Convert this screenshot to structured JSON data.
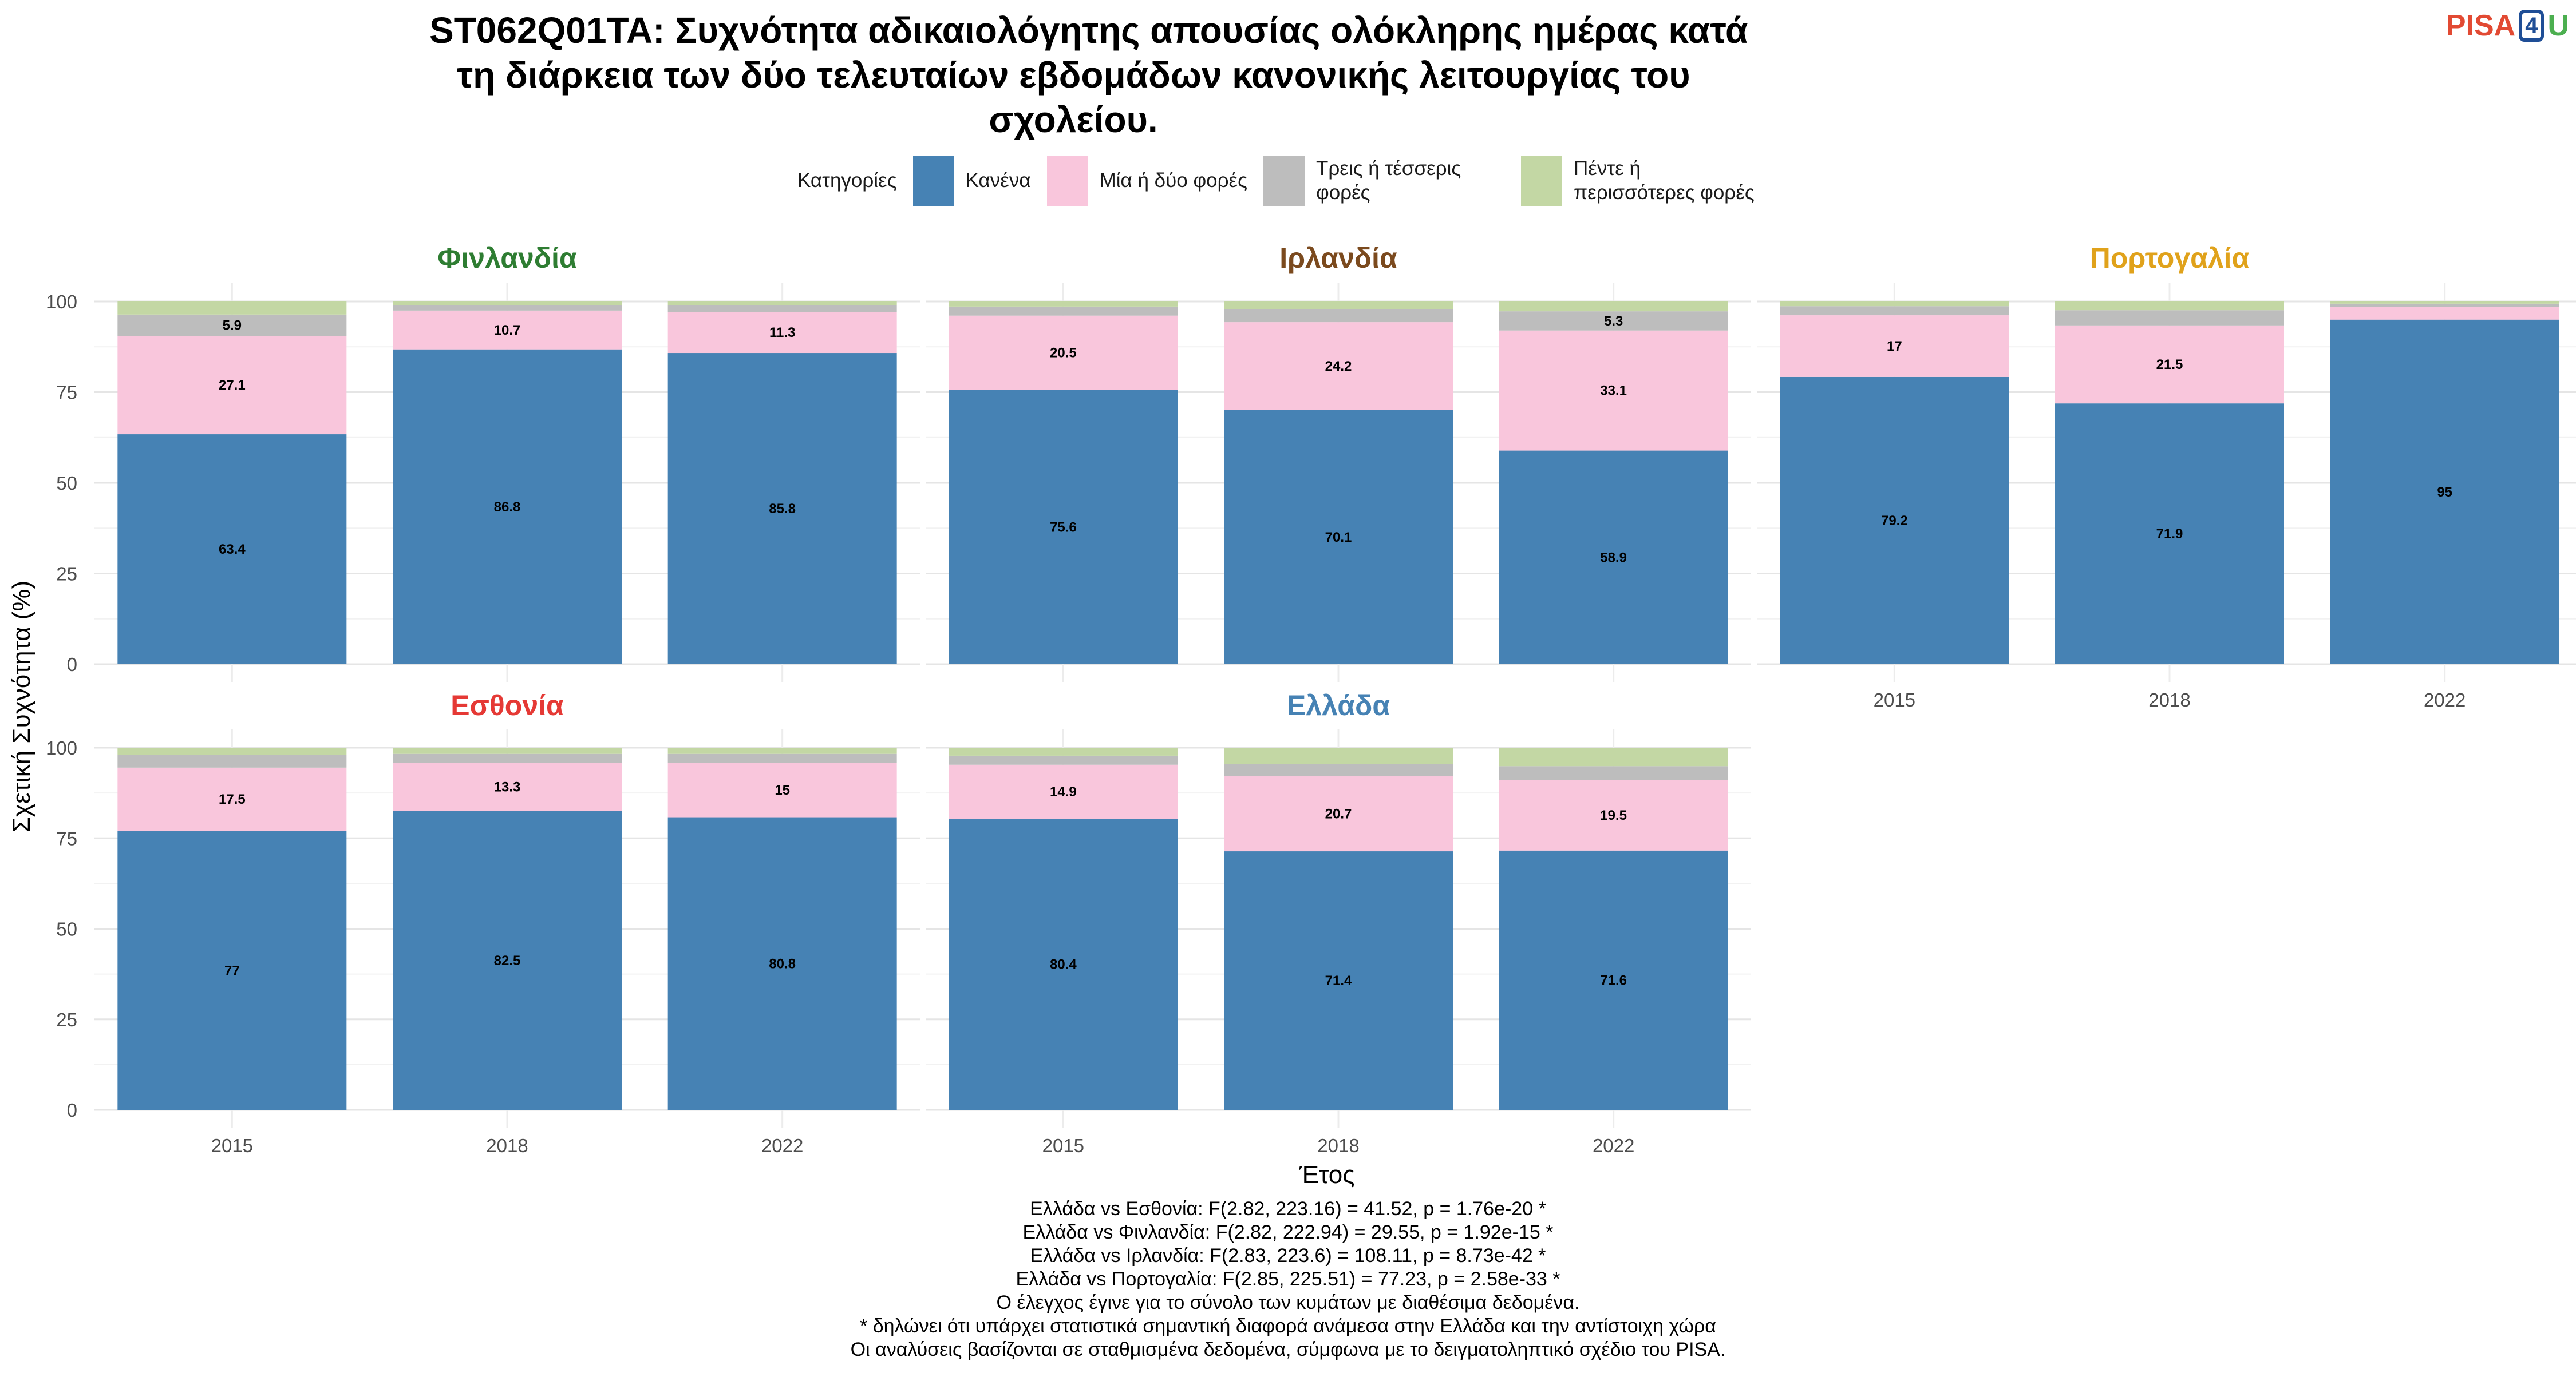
{
  "title_lines": [
    "ST062Q01TA: Συχνότητα αδικαιολόγητης απουσίας ολόκληρης ημέρας κατά",
    "τη διάρκεια των δύο τελευταίων εβδομάδων κανονικής λειτουργίας του",
    "σχολείου."
  ],
  "logo": {
    "part1": "PISA",
    "part2": "4",
    "part3": "U"
  },
  "legend": {
    "title": "Κατηγορίες",
    "items": [
      {
        "label": "Κανένα",
        "color": "#4682b4"
      },
      {
        "label": "Μία ή δύο φορές",
        "color": "#f9c6dc"
      },
      {
        "label": "Τρεις ή τέσσερις φορές",
        "color": "#bdbdbd"
      },
      {
        "label": "Πέντε ή περισσότερες φορές",
        "color": "#c3d7a4"
      }
    ]
  },
  "chart_data": {
    "type": "bar",
    "stacked": true,
    "categories": [
      "2015",
      "2018",
      "2022"
    ],
    "xlabel": "Έτος",
    "ylabel": "Σχετική Συχνότητα (%)",
    "ylim": [
      0,
      100
    ],
    "yticks": [
      0,
      25,
      50,
      75,
      100
    ],
    "grid": true,
    "legend_position": "top",
    "series_names": [
      "Κανένα",
      "Μία ή δύο φορές",
      "Τρεις ή τέσσερις φορές",
      "Πέντε ή περισσότερες φορές"
    ],
    "panels": [
      {
        "name": "Φινλανδία",
        "color": "#2e7d32",
        "values": [
          [
            63.4,
            27.1,
            5.9,
            3.6
          ],
          [
            86.8,
            10.7,
            1.5,
            1.0
          ],
          [
            85.8,
            11.3,
            1.8,
            1.1
          ]
        ],
        "labels": [
          [
            "63.4",
            "27.1",
            "5.9",
            ""
          ],
          [
            "86.8",
            "10.7",
            "",
            ""
          ],
          [
            "85.8",
            "11.3",
            "",
            ""
          ]
        ]
      },
      {
        "name": "Ιρλανδία",
        "color": "#7b4a1e",
        "values": [
          [
            75.6,
            20.5,
            2.5,
            1.4
          ],
          [
            70.1,
            24.2,
            3.6,
            2.1
          ],
          [
            58.9,
            33.1,
            5.3,
            2.7
          ]
        ],
        "labels": [
          [
            "75.6",
            "20.5",
            "",
            ""
          ],
          [
            "70.1",
            "24.2",
            "",
            ""
          ],
          [
            "58.9",
            "33.1",
            "5.3",
            ""
          ]
        ]
      },
      {
        "name": "Πορτογαλία",
        "color": "#e0a21b",
        "values": [
          [
            79.2,
            17.0,
            2.5,
            1.3
          ],
          [
            71.9,
            21.5,
            4.2,
            2.4
          ],
          [
            95.0,
            3.5,
            0.9,
            0.6
          ]
        ],
        "labels": [
          [
            "79.2",
            "17",
            "",
            ""
          ],
          [
            "71.9",
            "21.5",
            "",
            ""
          ],
          [
            "95",
            "",
            "",
            ""
          ]
        ]
      },
      {
        "name": "Εσθονία",
        "color": "#e53935",
        "values": [
          [
            77.0,
            17.5,
            3.5,
            2.0
          ],
          [
            82.5,
            13.3,
            2.5,
            1.7
          ],
          [
            80.8,
            15.0,
            2.5,
            1.7
          ]
        ],
        "labels": [
          [
            "77",
            "17.5",
            "",
            ""
          ],
          [
            "82.5",
            "13.3",
            "",
            ""
          ],
          [
            "80.8",
            "15",
            "",
            ""
          ]
        ]
      },
      {
        "name": "Ελλάδα",
        "color": "#4682b4",
        "values": [
          [
            80.4,
            14.9,
            2.5,
            2.2
          ],
          [
            71.4,
            20.7,
            3.4,
            4.5
          ],
          [
            71.6,
            19.5,
            3.8,
            5.1
          ]
        ],
        "labels": [
          [
            "80.4",
            "14.9",
            "",
            ""
          ],
          [
            "71.4",
            "20.7",
            "",
            ""
          ],
          [
            "71.6",
            "19.5",
            "",
            ""
          ]
        ]
      }
    ]
  },
  "notes": [
    "Ελλάδα vs Εσθονία: F(2.82, 223.16) = 41.52, p = 1.76e-20 *",
    "Ελλάδα vs Φινλανδία: F(2.82, 222.94) = 29.55, p = 1.92e-15 *",
    "Ελλάδα vs Ιρλανδία: F(2.83, 223.6) = 108.11, p = 8.73e-42 *",
    "Ελλάδα vs Πορτογαλία: F(2.85, 225.51) = 77.23, p = 2.58e-33 *",
    "Ο έλεγχος έγινε για το σύνολο των κυμάτων με διαθέσιμα δεδομένα.",
    "* δηλώνει ότι υπάρχει στατιστικά σημαντική διαφορά ανάμεσα στην Ελλάδα και την αντίστοιχη χώρα",
    "Οι αναλύσεις βασίζονται σε σταθμισμένα δεδομένα, σύμφωνα με το δειγματοληπτικό σχέδιο του PISA."
  ]
}
